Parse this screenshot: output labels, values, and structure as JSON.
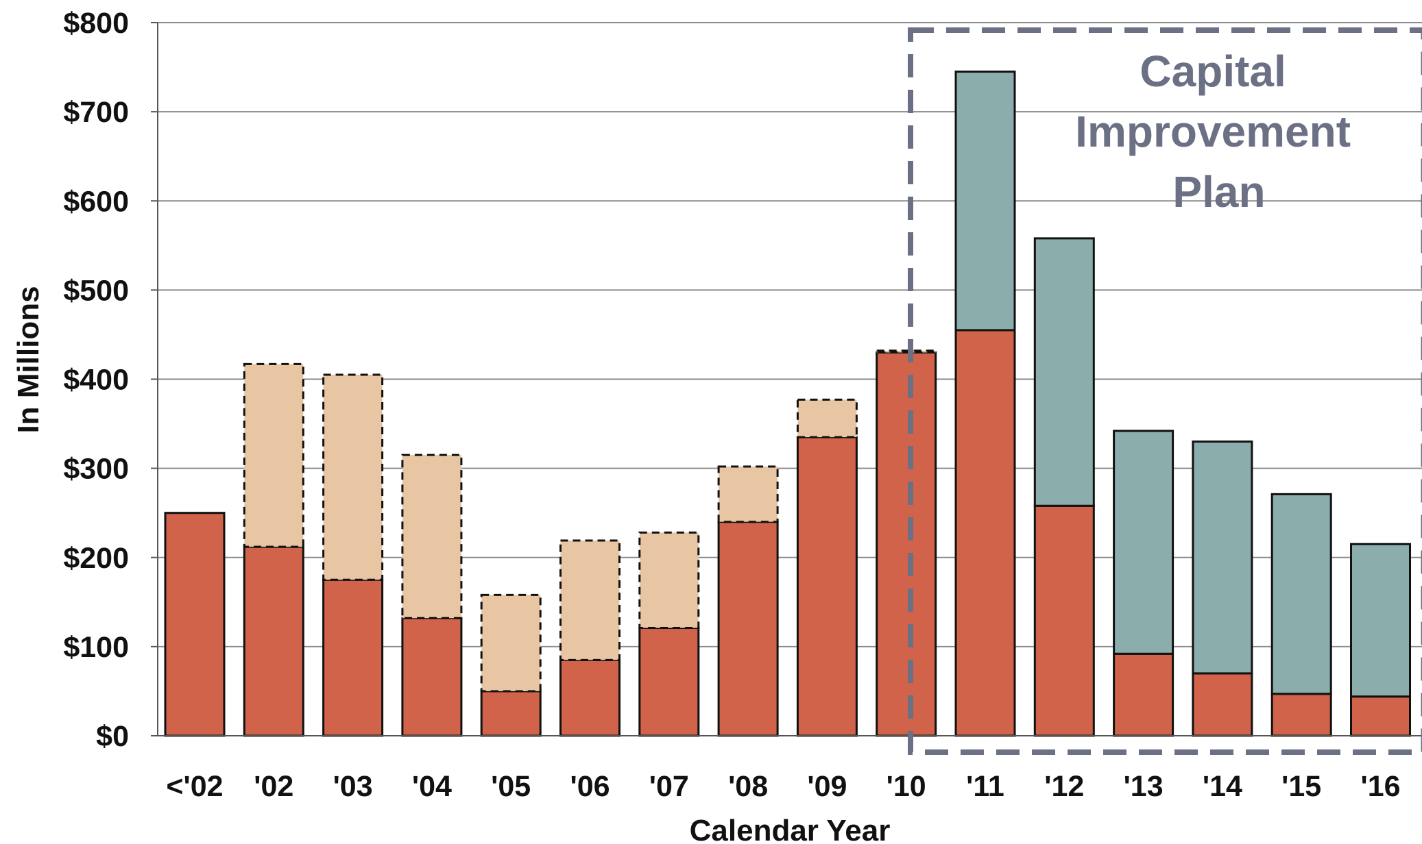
{
  "chart_data": {
    "type": "bar",
    "stacked": true,
    "categories": [
      "<'02",
      "'02",
      "'03",
      "'04",
      "'05",
      "'06",
      "'07",
      "'08",
      "'09",
      "'10",
      "'11",
      "'12",
      "'13",
      "'14",
      "'15",
      "'16"
    ],
    "series": [
      {
        "color": "#d0634a",
        "values": [
          250,
          212,
          175,
          132,
          50,
          85,
          121,
          240,
          335,
          430,
          455,
          258,
          92,
          70,
          47,
          44
        ]
      },
      {
        "color": "#e8c6a3",
        "border": "dashed",
        "values": [
          0,
          205,
          230,
          183,
          108,
          134,
          107,
          62,
          42,
          2,
          0,
          0,
          0,
          0,
          0,
          0
        ]
      },
      {
        "color": "#8badac",
        "values": [
          0,
          0,
          0,
          0,
          0,
          0,
          0,
          0,
          0,
          0,
          290,
          300,
          250,
          260,
          224,
          171
        ]
      }
    ],
    "xlabel": "Calendar Year",
    "ylabel": "In Millions",
    "ylim": [
      0,
      800
    ],
    "yticks": [
      0,
      100,
      200,
      300,
      400,
      500,
      600,
      700,
      800
    ],
    "ytick_labels": [
      "$0",
      "$100",
      "$200",
      "$300",
      "$400",
      "$500",
      "$600",
      "$700",
      "$800"
    ],
    "grid": true,
    "annotation": {
      "lines": [
        "Capital",
        "Improvement",
        "Plan"
      ],
      "color": "#6b7085",
      "spans_categories": [
        "'11",
        "'16"
      ],
      "border": "dashed"
    }
  }
}
